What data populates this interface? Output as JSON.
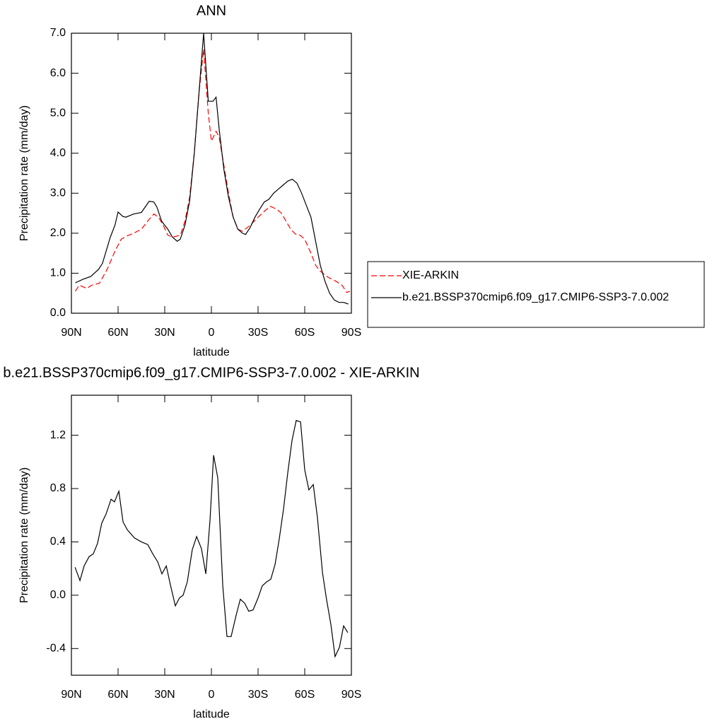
{
  "chart_data": [
    {
      "type": "line",
      "title": "ANN",
      "xlabel": "latitude",
      "ylabel": "Precipitation rate (mm/day)",
      "xlim": [
        90,
        -90
      ],
      "xticks": [
        {
          "value": 90,
          "label": "90N"
        },
        {
          "value": 60,
          "label": "60N"
        },
        {
          "value": 30,
          "label": "30N"
        },
        0,
        {
          "value": -30,
          "label": "30S"
        },
        {
          "value": -60,
          "label": "60S"
        },
        {
          "value": -90,
          "label": "90S"
        }
      ],
      "ylim": [
        0,
        7
      ],
      "yticks": [
        {
          "value": 0,
          "label": "0.0"
        },
        {
          "value": 1,
          "label": "1.0"
        },
        {
          "value": 2,
          "label": "2.0"
        },
        {
          "value": 3,
          "label": "3.0"
        },
        {
          "value": 4,
          "label": "4.0"
        },
        {
          "value": 5,
          "label": "5.0"
        },
        {
          "value": 6,
          "label": "6.0"
        },
        {
          "value": 7,
          "label": "7.0"
        }
      ],
      "legend": "right",
      "series": [
        {
          "name": "XIE-ARKIN",
          "color": "#ff0000",
          "line_style": "dashed",
          "x": [
            87.5,
            85,
            80,
            77,
            72,
            67,
            62,
            58,
            55,
            50,
            45,
            40,
            37,
            34,
            31,
            28,
            25,
            20,
            17,
            14,
            11,
            8,
            5,
            2,
            0,
            -3,
            -5,
            -8,
            -11,
            -14,
            -17,
            -20,
            -25,
            -30,
            -35,
            -38,
            -42,
            -45,
            -48,
            -51,
            -54,
            -57,
            -60,
            -64,
            -67,
            -70,
            -75,
            -80,
            -84,
            -87,
            -89
          ],
          "values": [
            0.55,
            0.7,
            0.62,
            0.7,
            0.75,
            1.1,
            1.55,
            1.85,
            1.92,
            2.0,
            2.1,
            2.35,
            2.48,
            2.4,
            2.2,
            1.95,
            1.9,
            1.95,
            2.3,
            2.9,
            4.0,
            5.5,
            6.6,
            5.0,
            4.3,
            4.55,
            4.4,
            3.7,
            3.0,
            2.4,
            2.1,
            2.05,
            2.2,
            2.4,
            2.58,
            2.67,
            2.6,
            2.5,
            2.3,
            2.1,
            1.98,
            1.95,
            1.85,
            1.5,
            1.2,
            1.05,
            0.9,
            0.8,
            0.7,
            0.52,
            0.55
          ]
        },
        {
          "name": "b.e21.BSSP370cmip6.f09_g17.CMIP6-SSP3-7.0.002",
          "color": "#000000",
          "line_style": "solid",
          "x": [
            87.5,
            82.5,
            77.5,
            72.5,
            70,
            65,
            62,
            60,
            57,
            55,
            50,
            45,
            40,
            37,
            35,
            32,
            28,
            25,
            22,
            20,
            17,
            14,
            11,
            8,
            5,
            2,
            -1,
            -3,
            -5,
            -8,
            -11,
            -14,
            -17,
            -20,
            -22,
            -25,
            -28,
            -31,
            -34,
            -37,
            -40,
            -43,
            -46,
            -49,
            -52,
            -55,
            -58,
            -61,
            -64,
            -67,
            -70,
            -73,
            -76,
            -79,
            -82,
            -85,
            -88
          ],
          "values": [
            0.76,
            0.85,
            0.92,
            1.1,
            1.25,
            1.9,
            2.2,
            2.53,
            2.42,
            2.4,
            2.48,
            2.52,
            2.8,
            2.78,
            2.65,
            2.3,
            2.1,
            1.9,
            1.8,
            1.85,
            2.2,
            2.8,
            4.0,
            5.5,
            7.0,
            5.3,
            5.3,
            5.4,
            4.6,
            3.6,
            2.9,
            2.4,
            2.1,
            2.0,
            1.97,
            2.15,
            2.4,
            2.6,
            2.78,
            2.85,
            3.0,
            3.1,
            3.2,
            3.3,
            3.35,
            3.25,
            3.0,
            2.7,
            2.4,
            1.8,
            1.2,
            0.8,
            0.5,
            0.33,
            0.27,
            0.27,
            0.23
          ]
        }
      ]
    },
    {
      "type": "line",
      "title": "b.e21.BSSP370cmip6.f09_g17.CMIP6-SSP3-7.0.002 - XIE-ARKIN",
      "xlabel": "latitude",
      "ylabel": "Precipitation rate (mm/day)",
      "xlim": [
        90,
        -90
      ],
      "xticks": [
        {
          "value": 90,
          "label": "90N"
        },
        {
          "value": 60,
          "label": "60N"
        },
        {
          "value": 30,
          "label": "30N"
        },
        0,
        {
          "value": -30,
          "label": "30S"
        },
        {
          "value": -60,
          "label": "60S"
        },
        {
          "value": -90,
          "label": "90S"
        }
      ],
      "ylim": [
        -0.6,
        1.5
      ],
      "yticks": [
        -0.4,
        {
          "value": 0,
          "label": "0.0"
        },
        0.4,
        0.8,
        1.2
      ],
      "series": [
        {
          "color": "#000000",
          "line_style": "solid",
          "x": [
            87.7,
            84.5,
            81.8,
            78.6,
            75.9,
            73.2,
            70.5,
            67.7,
            64.5,
            62.3,
            59.5,
            56.8,
            54,
            49.5,
            45,
            40.9,
            37.7,
            34.5,
            31.8,
            29,
            26.4,
            23.2,
            20.5,
            18.2,
            15.5,
            12.3,
            9.5,
            6.4,
            3.6,
            0.9,
            -1.4,
            -4.1,
            -7.3,
            -10,
            -12.7,
            -15.9,
            -18.6,
            -21.4,
            -24,
            -26.8,
            -30,
            -32.7,
            -35.5,
            -38.2,
            -40.9,
            -43.6,
            -46.4,
            -49,
            -51.8,
            -54.5,
            -57.3,
            -60,
            -62.7,
            -65.5,
            -68.2,
            -71.4,
            -74,
            -76.8,
            -79.5,
            -82.3,
            -85,
            -87.7
          ],
          "values": [
            0.21,
            0.11,
            0.22,
            0.29,
            0.31,
            0.39,
            0.54,
            0.61,
            0.72,
            0.7,
            0.78,
            0.55,
            0.49,
            0.43,
            0.4,
            0.38,
            0.31,
            0.25,
            0.16,
            0.22,
            0.08,
            -0.08,
            -0.02,
            0.0,
            0.1,
            0.34,
            0.44,
            0.35,
            0.16,
            0.56,
            1.05,
            0.88,
            0.07,
            -0.31,
            -0.31,
            -0.15,
            -0.03,
            -0.06,
            -0.12,
            -0.11,
            -0.02,
            0.07,
            0.1,
            0.12,
            0.23,
            0.42,
            0.65,
            0.91,
            1.16,
            1.31,
            1.3,
            0.94,
            0.79,
            0.83,
            0.58,
            0.17,
            -0.03,
            -0.22,
            -0.46,
            -0.39,
            -0.23,
            -0.28
          ]
        }
      ]
    }
  ]
}
